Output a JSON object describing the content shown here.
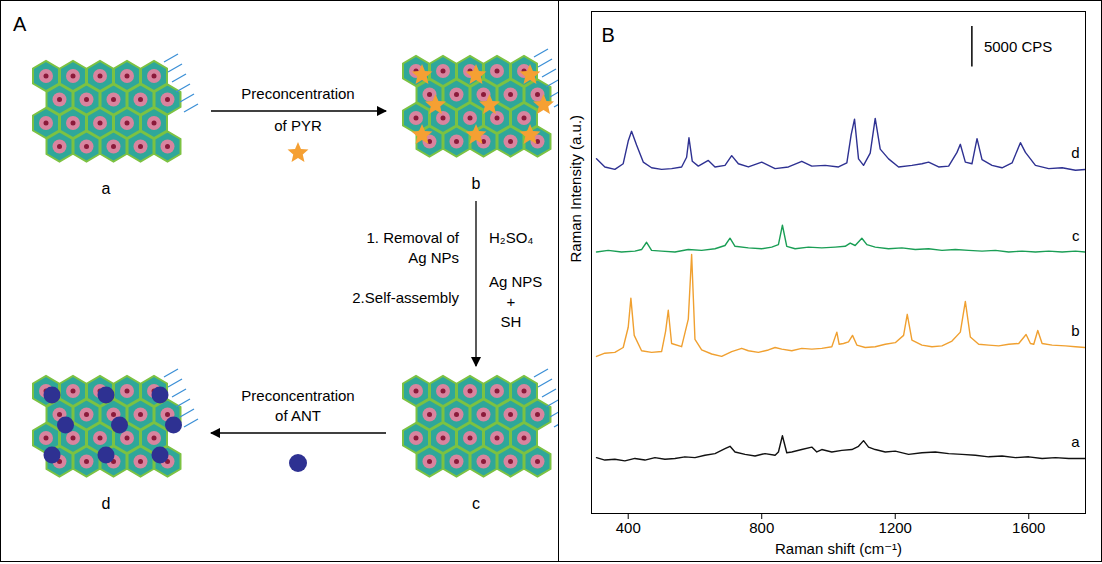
{
  "panel_A": {
    "panel_label": "A",
    "nodes": [
      {
        "label": "a"
      },
      {
        "label": "b"
      },
      {
        "label": "c"
      },
      {
        "label": "d"
      }
    ],
    "arrows": [
      {
        "from": "a",
        "to": "b",
        "label": "Preconcentration of PYR"
      },
      {
        "from": "b",
        "to": "c",
        "steps": [
          "1. Removal of Ag NPs",
          "2.Self-assembly"
        ],
        "reagents": [
          "H₂SO₄",
          "Ag NPS",
          "+",
          "SH"
        ]
      },
      {
        "from": "c",
        "to": "d",
        "label": "Preconcentration of ANT"
      }
    ]
  },
  "chart_data": {
    "type": "line",
    "annotations": [
      {
        "text": "B"
      },
      {
        "text": "5000 CPS",
        "value": 5000
      }
    ],
    "x_label": "Raman shift (cm⁻¹)",
    "y_label": "Raman Intensity (a.u.)",
    "xlim": [
      290,
      1770
    ],
    "xticks": [
      400,
      800,
      1200,
      1600
    ],
    "ylim": [
      0,
      62000
    ],
    "tick_labels": "x",
    "series": [
      {
        "name": "a",
        "color": "#111111",
        "x": [
          305,
          330,
          360,
          390,
          420,
          450,
          480,
          510,
          540,
          570,
          600,
          630,
          660,
          690,
          705,
          720,
          750,
          780,
          810,
          840,
          850,
          862,
          875,
          890,
          920,
          950,
          965,
          980,
          1010,
          1040,
          1070,
          1090,
          1105,
          1120,
          1140,
          1170,
          1200,
          1240,
          1280,
          1320,
          1360,
          1400,
          1440,
          1480,
          1520,
          1560,
          1600,
          1640,
          1680,
          1720,
          1770
        ],
        "values": [
          6900,
          6600,
          6700,
          6500,
          6800,
          6600,
          6900,
          6700,
          6800,
          7000,
          6900,
          7200,
          7400,
          8000,
          8300,
          7600,
          7300,
          7100,
          7400,
          7200,
          7600,
          9600,
          7500,
          7600,
          7900,
          8200,
          7600,
          7900,
          7600,
          7800,
          7900,
          8300,
          9000,
          8200,
          7900,
          7600,
          7700,
          7300,
          7500,
          7600,
          7400,
          7300,
          7200,
          7000,
          7100,
          6900,
          7000,
          6800,
          6900,
          6800,
          6800
        ]
      },
      {
        "name": "b",
        "color": "#f0a030",
        "x": [
          305,
          330,
          360,
          385,
          400,
          408,
          418,
          440,
          470,
          500,
          512,
          520,
          530,
          560,
          580,
          590,
          600,
          620,
          650,
          680,
          710,
          740,
          760,
          790,
          820,
          840,
          860,
          890,
          920,
          950,
          980,
          1010,
          1025,
          1032,
          1045,
          1060,
          1072,
          1085,
          1110,
          1140,
          1170,
          1200,
          1225,
          1236,
          1250,
          1280,
          1310,
          1340,
          1370,
          1395,
          1410,
          1425,
          1450,
          1480,
          1510,
          1540,
          1570,
          1592,
          1605,
          1615,
          1627,
          1640,
          1670,
          1710,
          1740,
          1770
        ],
        "values": [
          19400,
          19800,
          19900,
          20500,
          23000,
          26600,
          22000,
          20100,
          19900,
          20000,
          22500,
          25100,
          21000,
          20600,
          24000,
          32000,
          21500,
          20200,
          19700,
          19400,
          20000,
          20400,
          20100,
          19900,
          20200,
          20500,
          20300,
          20100,
          20400,
          20300,
          20400,
          20600,
          22400,
          20900,
          21000,
          21200,
          22000,
          20800,
          20500,
          20600,
          20900,
          21100,
          22000,
          24600,
          21400,
          20800,
          20600,
          20700,
          21300,
          22400,
          26200,
          21800,
          20900,
          20800,
          20700,
          20900,
          21000,
          22100,
          21000,
          20900,
          22600,
          21000,
          20800,
          20700,
          20600,
          20500
        ]
      },
      {
        "name": "c",
        "color": "#1a9e55",
        "x": [
          305,
          340,
          380,
          420,
          440,
          455,
          470,
          500,
          540,
          580,
          620,
          660,
          690,
          705,
          720,
          760,
          800,
          830,
          850,
          862,
          875,
          900,
          940,
          980,
          1020,
          1050,
          1065,
          1080,
          1100,
          1115,
          1140,
          1180,
          1220,
          1260,
          1300,
          1340,
          1380,
          1420,
          1460,
          1500,
          1540,
          1580,
          1620,
          1660,
          1700,
          1740,
          1770
        ],
        "values": [
          32300,
          32500,
          32300,
          32400,
          32600,
          33500,
          32500,
          32400,
          32300,
          32600,
          32500,
          32700,
          33100,
          34000,
          33000,
          32800,
          32700,
          32900,
          33200,
          35600,
          33000,
          32700,
          32900,
          32800,
          32900,
          33000,
          33400,
          33100,
          34000,
          33200,
          32900,
          32700,
          32800,
          32600,
          32700,
          32500,
          32600,
          32500,
          32400,
          32500,
          32300,
          32400,
          32300,
          32400,
          32300,
          32400,
          32300
        ]
      },
      {
        "name": "d",
        "color": "#2e3192",
        "x": [
          305,
          330,
          360,
          385,
          400,
          410,
          425,
          445,
          470,
          500,
          530,
          560,
          575,
          582,
          592,
          610,
          640,
          660,
          690,
          710,
          730,
          760,
          800,
          840,
          880,
          920,
          950,
          990,
          1030,
          1055,
          1068,
          1078,
          1090,
          1105,
          1125,
          1140,
          1155,
          1180,
          1210,
          1250,
          1280,
          1300,
          1330,
          1360,
          1385,
          1395,
          1410,
          1430,
          1445,
          1460,
          1490,
          1520,
          1550,
          1575,
          1590,
          1620,
          1660,
          1700,
          1740,
          1770
        ],
        "values": [
          43800,
          42800,
          42500,
          43200,
          46000,
          47200,
          45500,
          43400,
          42700,
          42500,
          42600,
          42800,
          44000,
          46400,
          43500,
          42900,
          43600,
          42800,
          43000,
          44200,
          43200,
          42800,
          43400,
          42600,
          42800,
          43500,
          42900,
          43000,
          42800,
          43300,
          46800,
          48700,
          43800,
          43000,
          44500,
          48800,
          45000,
          43800,
          42800,
          43000,
          43200,
          43400,
          42800,
          42900,
          44600,
          45600,
          43400,
          43200,
          46300,
          43700,
          43000,
          42700,
          43300,
          45800,
          44600,
          43000,
          42600,
          42700,
          42400,
          42500
        ]
      }
    ]
  }
}
